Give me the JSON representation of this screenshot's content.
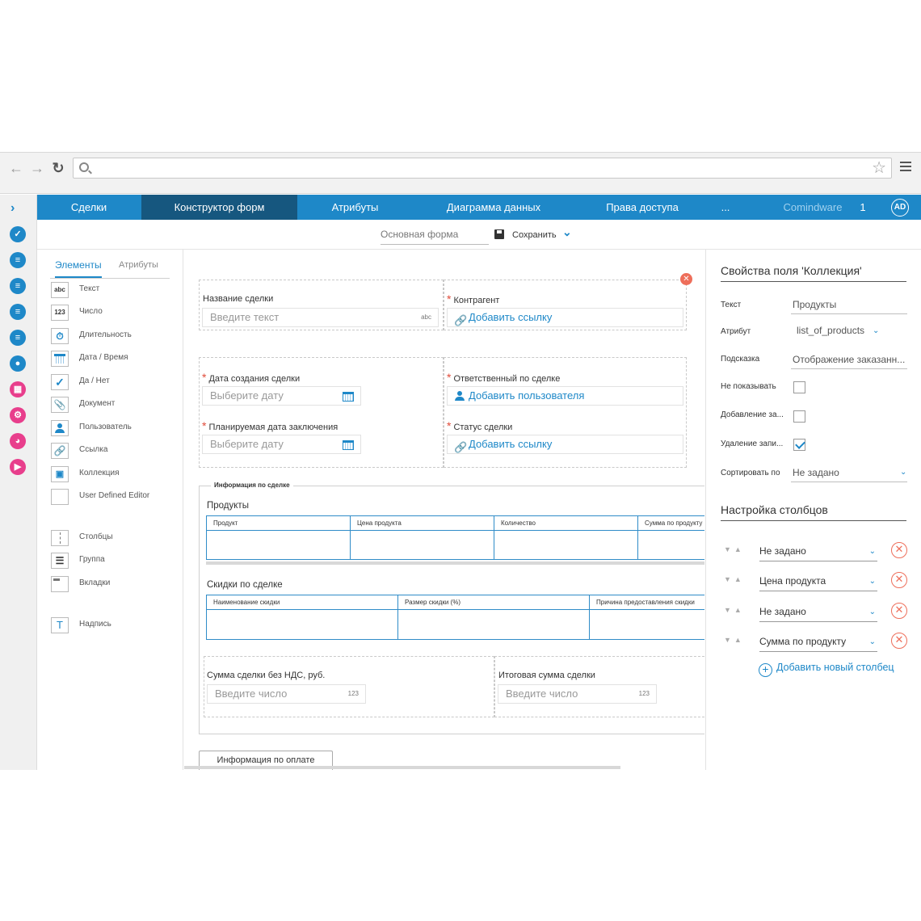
{
  "browser": {},
  "app_sidebar": {
    "icon_colors": [
      "#1e88c8",
      "#1e88c8",
      "#1e88c8",
      "#1e88c8",
      "#1e88c8",
      "#1e88c8",
      "#e83e8c",
      "#e83e8c",
      "#e83e8c",
      "#e83e8c"
    ]
  },
  "topnav": {
    "tabs": [
      "Сделки",
      "Конструктор форм",
      "Атрибуты",
      "Диаграмма данных",
      "Права доступа",
      "..."
    ],
    "brand": "Comindware",
    "count": "1",
    "avatar": "AD"
  },
  "formbar": {
    "form_name": "Основная форма",
    "save_label": "Сохранить"
  },
  "elements_panel": {
    "tabs": [
      "Элементы",
      "Атрибуты"
    ],
    "items": [
      {
        "icon": "abc",
        "label": "Текст"
      },
      {
        "icon": "123",
        "label": "Число"
      },
      {
        "icon": "stopwatch-icon",
        "label": "Длительность"
      },
      {
        "icon": "calendar-icon",
        "label": "Дата / Время"
      },
      {
        "icon": "checkmark-icon",
        "label": "Да / Нет"
      },
      {
        "icon": "document-icon",
        "label": "Документ"
      },
      {
        "icon": "user-icon",
        "label": "Пользователь"
      },
      {
        "icon": "link-icon",
        "label": "Ссылка"
      },
      {
        "icon": "collection-icon",
        "label": "Коллекция"
      },
      {
        "icon": "blank-icon",
        "label": "User Defined Editor"
      },
      {
        "icon": "columns-icon",
        "label": "Столбцы"
      },
      {
        "icon": "group-icon",
        "label": "Группа"
      },
      {
        "icon": "tabs-icon",
        "label": "Вкладки"
      },
      {
        "icon": "T",
        "label": "Надпись"
      }
    ]
  },
  "canvas": {
    "deal_name_label": "Название сделки",
    "deal_name_placeholder": "Введите текст",
    "deal_name_hint": "abc",
    "counterparty_label": "Контрагент",
    "counterparty_link": "Добавить ссылку",
    "created_date_label": "Дата создания сделки",
    "created_date_placeholder": "Выберите дату",
    "responsible_label": "Ответственный по сделке",
    "responsible_link": "Добавить пользователя",
    "planned_date_label": "Планируемая дата заключения",
    "planned_date_placeholder": "Выберите дату",
    "status_label": "Статус сделки",
    "status_link": "Добавить ссылку",
    "group_title": "Информация по сделке",
    "products_label": "Продукты",
    "products_columns": [
      "Продукт",
      "Цена продукта",
      "Количество",
      "Сумма по продукту"
    ],
    "discounts_label": "Скидки по сделке",
    "discounts_columns": [
      "Наименование скидки",
      "Размер скидки (%)",
      "Причина предоставления скидки"
    ],
    "sum_label": "Сумма сделки без НДС, руб.",
    "sum_placeholder": "Введите число",
    "total_label": "Итоговая сумма сделки",
    "total_placeholder": "Введите число",
    "number_hint": "123",
    "payment_button": "Информация по оплате"
  },
  "properties": {
    "title": "Свойства поля 'Коллекция'",
    "text_label": "Текст",
    "text_value": "Продукты",
    "attr_label": "Атрибут",
    "attr_value": "list_of_products",
    "hint_label": "Подсказка",
    "hint_value": "Отображение заказанн...",
    "hide_label": "Не показывать",
    "hide_checked": false,
    "add_label": "Добавление за...",
    "add_checked": false,
    "delete_label": "Удаление запи...",
    "delete_checked": true,
    "sort_label": "Сортировать по",
    "sort_value": "Не задано",
    "columns_title": "Настройка столбцов",
    "columns": [
      "Не задано",
      "Цена продукта",
      "Не задано",
      "Сумма по продукту"
    ],
    "add_column": "Добавить новый столбец"
  }
}
